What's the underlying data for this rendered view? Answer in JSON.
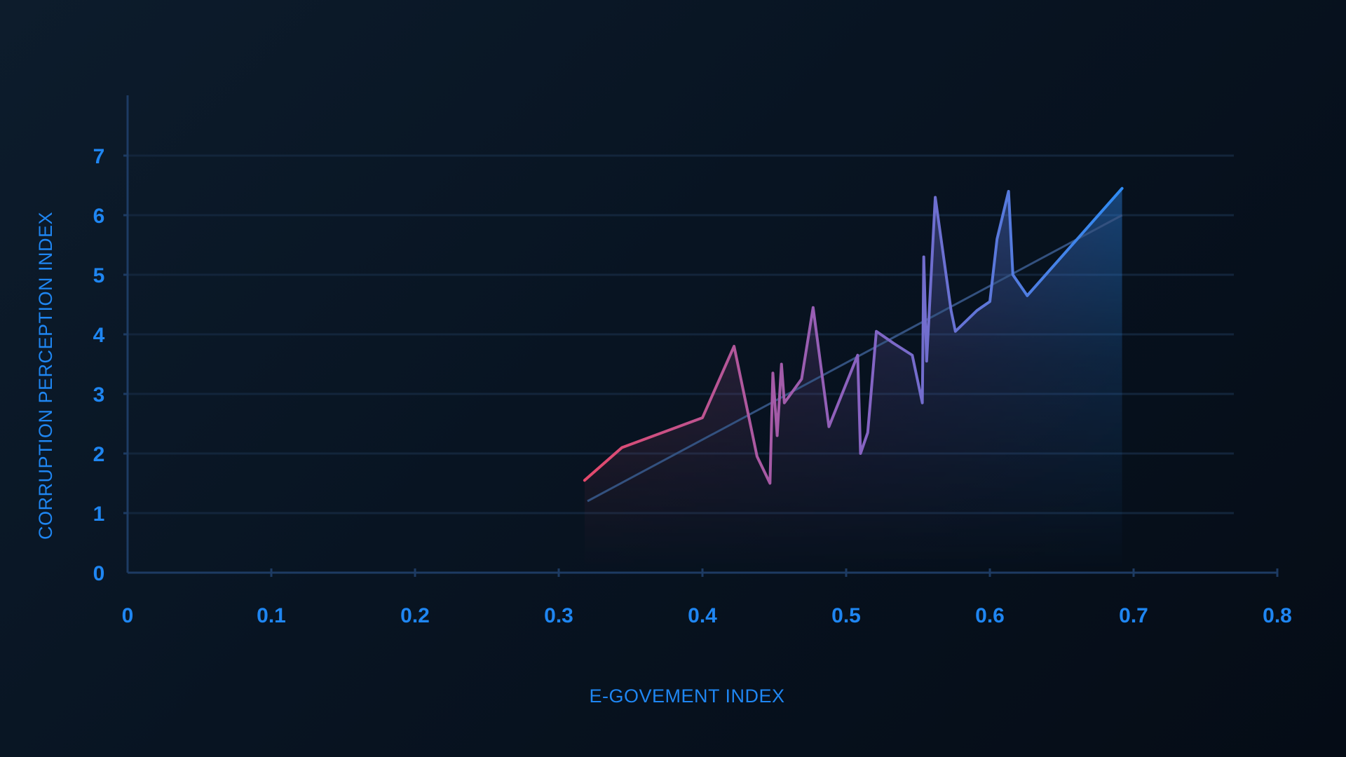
{
  "chart_data": {
    "type": "area",
    "title": "",
    "xlabel": "E-GOVEMENT INDEX",
    "ylabel": "CORRUPTION PERCEPTION INDEX",
    "xlim": [
      0,
      0.8
    ],
    "ylim": [
      0,
      8
    ],
    "x_ticks": [
      {
        "value": 0,
        "label": "0"
      },
      {
        "value": 0.1,
        "label": "0.1"
      },
      {
        "value": 0.2,
        "label": "0.2"
      },
      {
        "value": 0.3,
        "label": "0.3"
      },
      {
        "value": 0.4,
        "label": "0.4"
      },
      {
        "value": 0.5,
        "label": "0.5"
      },
      {
        "value": 0.6,
        "label": "0.6"
      },
      {
        "value": 0.7,
        "label": "0.7"
      },
      {
        "value": 0.8,
        "label": "0.8"
      }
    ],
    "y_ticks": [
      {
        "value": 0,
        "label": "0"
      },
      {
        "value": 1,
        "label": "1"
      },
      {
        "value": 2,
        "label": "2"
      },
      {
        "value": 3,
        "label": "3"
      },
      {
        "value": 4,
        "label": "4"
      },
      {
        "value": 5,
        "label": "5"
      },
      {
        "value": 6,
        "label": "6"
      },
      {
        "value": 7,
        "label": "7"
      }
    ],
    "grid": {
      "horizontal": true,
      "vertical": false
    },
    "legend": "none",
    "series": [
      {
        "x": [
          0.318,
          0.344,
          0.4,
          0.422,
          0.438,
          0.447,
          0.449,
          0.452,
          0.455,
          0.457,
          0.469,
          0.477,
          0.488,
          0.508,
          0.51,
          0.515,
          0.521,
          0.533,
          0.546,
          0.553,
          0.554,
          0.556,
          0.562,
          0.573,
          0.576,
          0.591,
          0.6,
          0.605,
          0.613,
          0.616,
          0.626
        ],
        "y": [
          1.55,
          2.1,
          2.6,
          3.8,
          1.95,
          1.5,
          3.35,
          2.3,
          3.5,
          2.85,
          3.25,
          4.45,
          2.45,
          3.65,
          2.0,
          2.35,
          4.05,
          3.85,
          3.65,
          2.85,
          5.3,
          3.55,
          6.3,
          4.4,
          4.05,
          4.4,
          4.55,
          5.6,
          6.4,
          5.0,
          4.65
        ]
      },
      {
        "x": [
          0.626,
          0.692
        ],
        "y": [
          4.65,
          6.45
        ]
      }
    ],
    "trendline": {
      "x": [
        0.32,
        0.692
      ],
      "y": [
        1.2,
        6.0
      ]
    },
    "colors": {
      "start": "#e5496b",
      "mid": "#8a62c0",
      "end": "#2f8cf4",
      "axis_text": "#1f86f2",
      "axis_line": "#1d3b63",
      "grid": "#13253b",
      "trendline": "#33517f"
    }
  }
}
